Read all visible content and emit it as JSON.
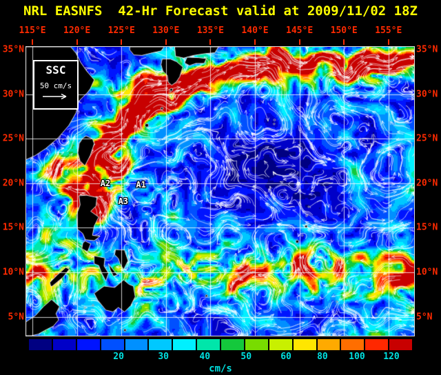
{
  "title": "NRL EASNFS  42-Hr Forecast valid at 2009/11/02 18Z",
  "legend": {
    "title": "SSC",
    "scale_label": "50 cm/s"
  },
  "axes": {
    "lon_ticks": [
      {
        "label": "115°E",
        "lon": 115
      },
      {
        "label": "120°E",
        "lon": 120
      },
      {
        "label": "125°E",
        "lon": 125
      },
      {
        "label": "130°E",
        "lon": 130
      },
      {
        "label": "135°E",
        "lon": 135
      },
      {
        "label": "140°E",
        "lon": 140
      },
      {
        "label": "145°E",
        "lon": 145
      },
      {
        "label": "150°E",
        "lon": 150
      },
      {
        "label": "155°E",
        "lon": 155
      }
    ],
    "lat_ticks": [
      {
        "label": "35°N",
        "lat": 35
      },
      {
        "label": "30°N",
        "lat": 30
      },
      {
        "label": "25°N",
        "lat": 25
      },
      {
        "label": "20°N",
        "lat": 20
      },
      {
        "label": "15°N",
        "lat": 15
      },
      {
        "label": "10°N",
        "lat": 10
      },
      {
        "label": "5°N",
        "lat": 5
      }
    ]
  },
  "annotations": [
    {
      "label": "A1",
      "lon": 127.2,
      "lat": 19.8
    },
    {
      "label": "A2",
      "lon": 123.2,
      "lat": 20.0
    },
    {
      "label": "A3",
      "lon": 125.2,
      "lat": 18.0
    }
  ],
  "colorbar": {
    "units": "cm/s",
    "colors": [
      "#000082",
      "#0000c8",
      "#0014ff",
      "#0050ff",
      "#0090ff",
      "#00c8ff",
      "#00f0ff",
      "#00e6aa",
      "#14c83c",
      "#78dc00",
      "#c8f000",
      "#ffe600",
      "#ffaa00",
      "#ff6e00",
      "#ff2800",
      "#c80000"
    ],
    "ticks": [
      {
        "label": "20",
        "pos": 0.234
      },
      {
        "label": "30",
        "pos": 0.351
      },
      {
        "label": "40",
        "pos": 0.459
      },
      {
        "label": "50",
        "pos": 0.567
      },
      {
        "label": "60",
        "pos": 0.671
      },
      {
        "label": "80",
        "pos": 0.766
      },
      {
        "label": "100",
        "pos": 0.856
      },
      {
        "label": "120",
        "pos": 0.946
      }
    ]
  },
  "colors": {
    "title": "#ffff00",
    "axis": "#ff2a00",
    "colorbar_text": "#00e0e0",
    "grid": "#ffffff",
    "background": "#000000"
  },
  "map": {
    "lon_min": 114.3,
    "lon_max": 157.88,
    "lat_min": 2.88,
    "lat_max": 35.31,
    "grid_lons": [
      115,
      120,
      125,
      130,
      135,
      140,
      145,
      150,
      155
    ],
    "grid_lats": [
      5,
      10,
      15,
      20,
      25,
      30
    ],
    "land": {
      "china": [
        [
          114.3,
          35.31
        ],
        [
          119.3,
          35.31
        ],
        [
          119.9,
          34.6
        ],
        [
          120.4,
          33.6
        ],
        [
          121.1,
          32.6
        ],
        [
          121.95,
          31.6
        ],
        [
          121.5,
          30.6
        ],
        [
          121.2,
          30.2
        ],
        [
          120.2,
          29.2
        ],
        [
          119.9,
          27.9
        ],
        [
          119.1,
          26.5
        ],
        [
          117.9,
          25.1
        ],
        [
          116.5,
          23.9
        ],
        [
          115.3,
          23.1
        ],
        [
          114.3,
          22.65
        ]
      ],
      "korea": [
        [
          125.95,
          35.31
        ],
        [
          129.8,
          35.31
        ],
        [
          129.45,
          34.85
        ],
        [
          128.5,
          34.65
        ],
        [
          127.3,
          34.35
        ],
        [
          126.4,
          34.4
        ],
        [
          125.95,
          34.95
        ]
      ],
      "kyushu": [
        [
          129.6,
          33.95
        ],
        [
          130.5,
          33.95
        ],
        [
          131.2,
          33.65
        ],
        [
          131.9,
          33.05
        ],
        [
          131.55,
          31.95
        ],
        [
          131.15,
          31.35
        ],
        [
          130.65,
          31.0
        ],
        [
          130.25,
          31.35
        ],
        [
          130.15,
          32.1
        ],
        [
          129.65,
          32.6
        ],
        [
          129.45,
          33.3
        ]
      ],
      "honshu": [
        [
          131.0,
          35.31
        ],
        [
          135.9,
          35.31
        ],
        [
          135.5,
          34.65
        ],
        [
          134.4,
          34.55
        ],
        [
          133.1,
          34.35
        ],
        [
          132.0,
          34.05
        ],
        [
          131.1,
          34.25
        ]
      ],
      "shikoku": [
        [
          132.4,
          34.15
        ],
        [
          133.7,
          34.1
        ],
        [
          134.55,
          34.0
        ],
        [
          134.3,
          33.45
        ],
        [
          133.35,
          33.45
        ],
        [
          132.65,
          33.2
        ],
        [
          132.1,
          33.5
        ]
      ],
      "taiwan": [
        [
          121.05,
          25.3
        ],
        [
          121.75,
          25.0
        ],
        [
          121.95,
          24.45
        ],
        [
          121.5,
          23.1
        ],
        [
          120.9,
          21.95
        ],
        [
          120.35,
          22.5
        ],
        [
          120.1,
          23.4
        ],
        [
          120.25,
          24.45
        ],
        [
          120.65,
          25.05
        ]
      ],
      "luzon": [
        [
          120.25,
          18.6
        ],
        [
          121.1,
          18.65
        ],
        [
          122.25,
          18.4
        ],
        [
          122.15,
          17.45
        ],
        [
          121.55,
          16.85
        ],
        [
          122.45,
          16.2
        ],
        [
          121.95,
          15.2
        ],
        [
          121.75,
          14.15
        ],
        [
          122.6,
          14.05
        ],
        [
          121.95,
          13.55
        ],
        [
          120.95,
          13.65
        ],
        [
          120.65,
          14.35
        ],
        [
          120.05,
          14.85
        ],
        [
          119.95,
          16.45
        ],
        [
          120.35,
          17.55
        ]
      ],
      "mindoro": [
        [
          120.95,
          13.5
        ],
        [
          121.55,
          13.2
        ],
        [
          121.2,
          12.3
        ],
        [
          120.55,
          12.65
        ],
        [
          120.65,
          13.25
        ]
      ],
      "samar": [
        [
          124.35,
          12.55
        ],
        [
          125.35,
          12.5
        ],
        [
          125.75,
          11.3
        ],
        [
          125.25,
          10.3
        ],
        [
          124.85,
          10.95
        ],
        [
          124.65,
          11.55
        ],
        [
          124.25,
          11.95
        ]
      ],
      "panay_negros": [
        [
          121.95,
          11.85
        ],
        [
          123.15,
          11.6
        ],
        [
          123.05,
          10.7
        ],
        [
          123.55,
          9.9
        ],
        [
          123.25,
          9.0
        ],
        [
          122.75,
          9.95
        ],
        [
          122.45,
          10.75
        ],
        [
          121.95,
          10.95
        ]
      ],
      "cebu": [
        [
          123.55,
          10.95
        ],
        [
          124.15,
          10.2
        ],
        [
          124.55,
          9.7
        ],
        [
          124.1,
          9.55
        ],
        [
          123.75,
          10.25
        ]
      ],
      "mindanao": [
        [
          121.95,
          7.65
        ],
        [
          123.05,
          8.45
        ],
        [
          124.25,
          8.3
        ],
        [
          125.25,
          9.15
        ],
        [
          125.85,
          8.65
        ],
        [
          126.35,
          8.45
        ],
        [
          126.55,
          7.25
        ],
        [
          126.05,
          6.25
        ],
        [
          125.35,
          5.55
        ],
        [
          124.65,
          6.05
        ],
        [
          124.05,
          5.55
        ],
        [
          123.25,
          5.75
        ],
        [
          122.35,
          6.85
        ]
      ],
      "palawan": [
        [
          117.25,
          8.45
        ],
        [
          118.45,
          9.45
        ],
        [
          119.15,
          10.35
        ],
        [
          118.75,
          10.55
        ],
        [
          117.85,
          9.75
        ],
        [
          116.95,
          8.85
        ],
        [
          117.05,
          8.45
        ]
      ],
      "borneo": [
        [
          114.3,
          4.45
        ],
        [
          115.35,
          5.15
        ],
        [
          116.25,
          6.15
        ],
        [
          117.15,
          6.95
        ],
        [
          118.05,
          6.15
        ],
        [
          117.65,
          5.35
        ],
        [
          117.95,
          4.65
        ],
        [
          117.35,
          3.95
        ],
        [
          116.55,
          3.55
        ],
        [
          115.65,
          3.05
        ],
        [
          114.9,
          2.88
        ],
        [
          114.3,
          2.88
        ]
      ]
    },
    "islands": [
      [
        130.6,
        30.5,
        2
      ],
      [
        130.45,
        30.25,
        1.4
      ],
      [
        129.55,
        28.4,
        1.8
      ],
      [
        128.95,
        27.85,
        1.4
      ],
      [
        127.85,
        26.5,
        2.6
      ],
      [
        127.2,
        26.1,
        1.4
      ],
      [
        125.3,
        24.8,
        1.4
      ],
      [
        124.2,
        24.4,
        1.4
      ],
      [
        123.0,
        24.45,
        1.2
      ],
      [
        139.5,
        34.75,
        1.4
      ],
      [
        139.3,
        34.1,
        1.2
      ],
      [
        139.1,
        33.1,
        1.2
      ],
      [
        140.0,
        32.1,
        1.2
      ],
      [
        142.2,
        27.1,
        1.4
      ],
      [
        142.15,
        26.65,
        1.2
      ],
      [
        141.3,
        24.75,
        1.2
      ],
      [
        145.75,
        15.15,
        1.8
      ],
      [
        145.8,
        16.35,
        1.3
      ],
      [
        146.05,
        17.35,
        1.2
      ],
      [
        145.3,
        14.15,
        1.4
      ],
      [
        144.75,
        13.45,
        2.2
      ],
      [
        134.55,
        7.35,
        1.6
      ],
      [
        138.15,
        9.5,
        1.3
      ],
      [
        139.75,
        10.0,
        1.2
      ],
      [
        151.85,
        7.35,
        1.4
      ],
      [
        150.3,
        8.55,
        1.2
      ],
      [
        153.6,
        5.3,
        1.3
      ],
      [
        149.2,
        6.7,
        1.2
      ],
      [
        147.0,
        7.4,
        1.2
      ],
      [
        115.05,
        10.1,
        1.2
      ],
      [
        116.0,
        8.85,
        1.2
      ],
      [
        114.75,
        7.95,
        1.2
      ],
      [
        120.9,
        6.0,
        1.3
      ],
      [
        121.8,
        6.3,
        1.3
      ],
      [
        119.9,
        5.05,
        1.3
      ],
      [
        125.4,
        3.5,
        1.8
      ]
    ],
    "flow_model": {
      "kuroshio_path": [
        [
          121.7,
          17.0
        ],
        [
          121.7,
          19.5
        ],
        [
          121.9,
          21.5
        ],
        [
          122.4,
          23.5
        ],
        [
          123.3,
          25.0
        ],
        [
          125.0,
          26.6
        ],
        [
          127.0,
          27.9
        ],
        [
          129.0,
          29.2
        ],
        [
          131.0,
          30.3
        ],
        [
          133.2,
          31.2
        ],
        [
          135.3,
          31.8
        ],
        [
          137.8,
          32.5
        ],
        [
          140.5,
          33.3
        ],
        [
          143.0,
          33.8
        ],
        [
          145.5,
          33.2
        ],
        [
          148.0,
          33.9
        ],
        [
          150.5,
          32.9
        ],
        [
          153.0,
          33.8
        ],
        [
          155.5,
          33.1
        ],
        [
          157.9,
          33.6
        ]
      ],
      "blobs": [
        {
          "lon": 120.4,
          "lat": 19.6,
          "sx": 2.6,
          "sy": 2.2,
          "a": 0.7
        },
        {
          "lon": 123.4,
          "lat": 21.2,
          "sx": 2.6,
          "sy": 2.0,
          "a": 0.8
        },
        {
          "lon": 118.2,
          "lat": 21.6,
          "sx": 2.4,
          "sy": 1.7,
          "a": 0.55
        },
        {
          "lon": 123.0,
          "lat": 30.0,
          "sx": 2.4,
          "sy": 1.8,
          "a": 0.5
        },
        {
          "lon": 126.8,
          "lat": 31.6,
          "sx": 2.6,
          "sy": 1.6,
          "a": 0.45
        },
        {
          "lon": 127.4,
          "lat": 6.9,
          "sx": 2.4,
          "sy": 1.5,
          "a": 0.5
        },
        {
          "lon": 150.5,
          "lat": 32.0,
          "sx": 4.5,
          "sy": 2.0,
          "a": 0.35
        },
        {
          "lon": 116.5,
          "lat": 13.5,
          "sx": 3.0,
          "sy": 2.5,
          "a": 0.25
        }
      ]
    }
  }
}
